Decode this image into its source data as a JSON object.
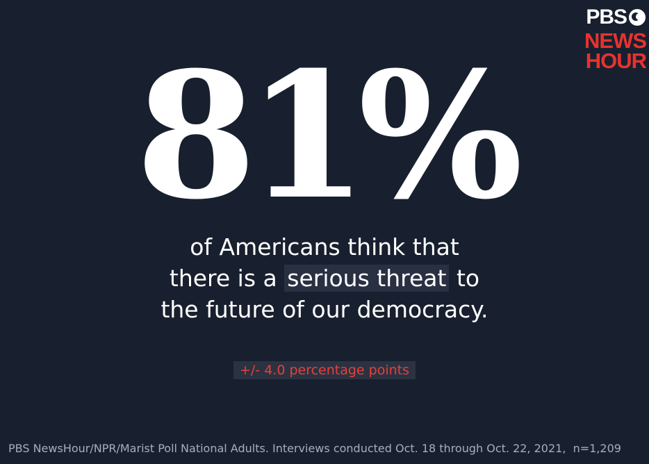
{
  "logo": {
    "line1": "PBS",
    "line2": "NEWS",
    "line3": "HOUR"
  },
  "stat": "81%",
  "statement": {
    "line1": "of Americans think that",
    "line2": {
      "before": "there is a",
      "highlight": "serious threat",
      "after": "to"
    },
    "line3": "the future of our democracy."
  },
  "margin": "+/- 4.0 percentage points",
  "source": "PBS NewsHour/NPR/Marist Poll National Adults. Interviews conducted Oct. 18 through Oct. 22, 2021,  n=1,209"
}
